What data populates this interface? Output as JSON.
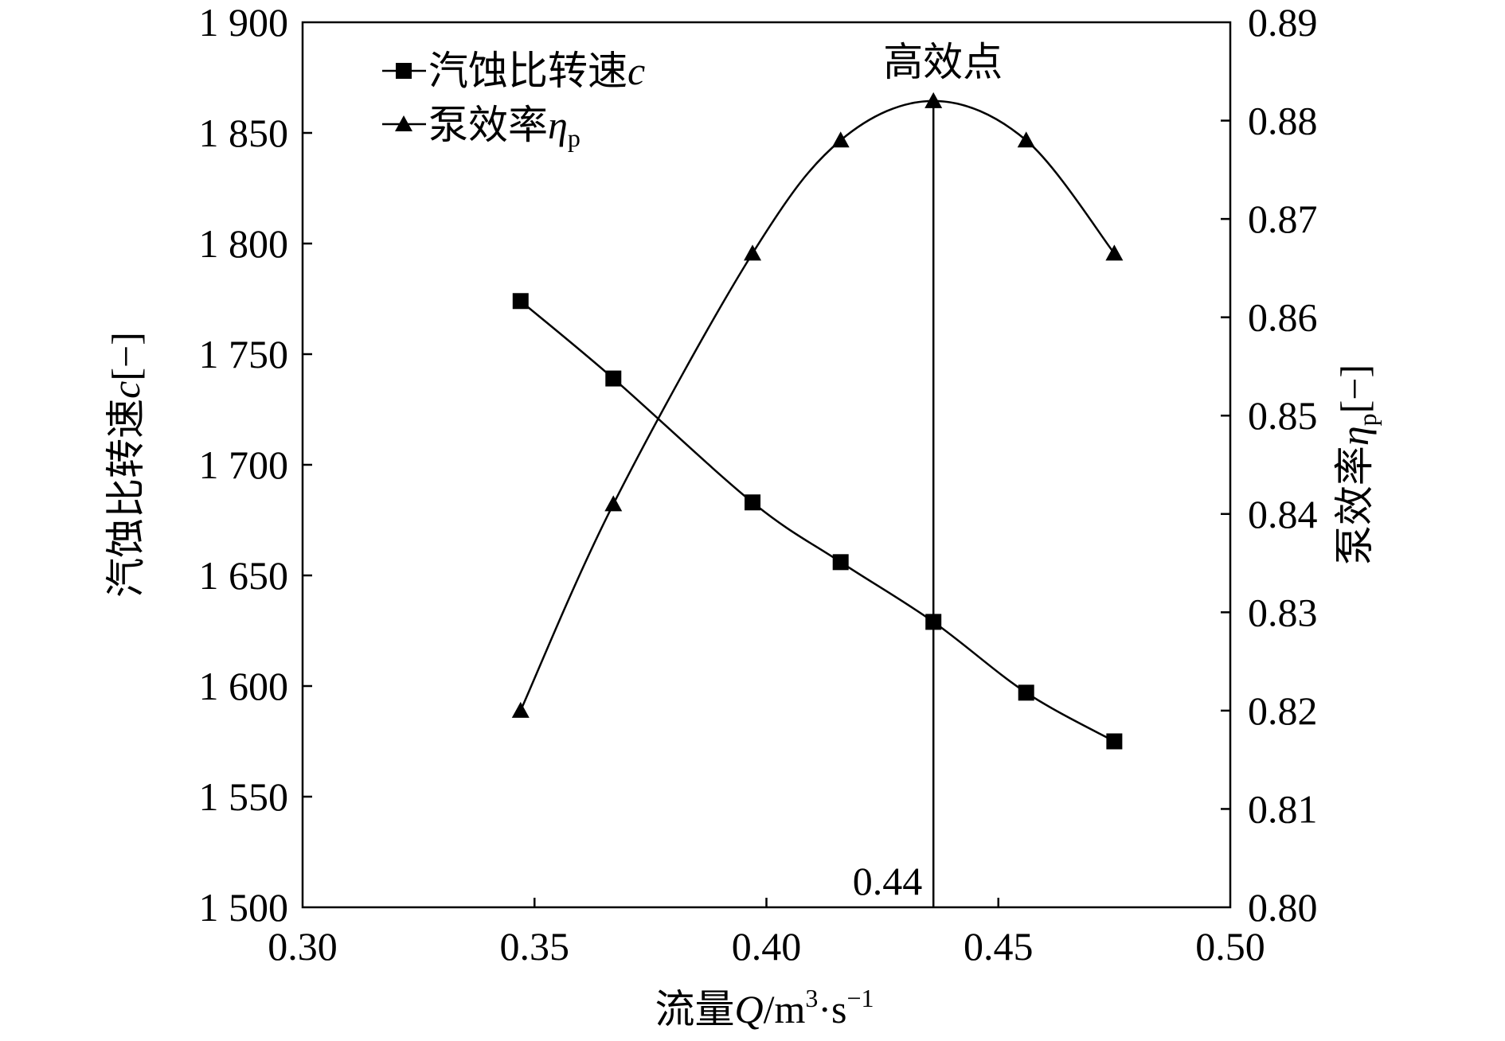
{
  "chart_data": {
    "type": "line",
    "xlabel": {
      "prefix": "流量",
      "var": "Q",
      "unit": "/m",
      "sup1": "3",
      "mid": "·s",
      "sup2": "−1"
    },
    "ylabel_left": {
      "text": "汽蚀比转速",
      "var": "c",
      "unit": "[−]"
    },
    "ylabel_right": {
      "text": "泵效率",
      "var": "η",
      "sub": "p",
      "unit": "[−]"
    },
    "xlim": [
      0.3,
      0.5
    ],
    "ylim_left": [
      1500,
      1900
    ],
    "ylim_right": [
      0.8,
      0.89
    ],
    "x_ticks": [
      "0.30",
      "0.35",
      "0.40",
      "0.45",
      "0.50"
    ],
    "y_left_ticks": [
      "1 500",
      "1 550",
      "1 600",
      "1 650",
      "1 700",
      "1 750",
      "1 800",
      "1 850",
      "1 900"
    ],
    "y_right_ticks": [
      "0.80",
      "0.81",
      "0.82",
      "0.83",
      "0.84",
      "0.85",
      "0.86",
      "0.87",
      "0.88",
      "0.89"
    ],
    "series": [
      {
        "name": "汽蚀比转速",
        "name_var": "c",
        "axis": "left",
        "marker": "square",
        "x": [
          0.347,
          0.367,
          0.397,
          0.416,
          0.436,
          0.456,
          0.475
        ],
        "y": [
          1774,
          1739,
          1683,
          1656,
          1629,
          1597,
          1575
        ]
      },
      {
        "name": "泵效率",
        "name_var": "η",
        "name_sub": "p",
        "axis": "right",
        "marker": "triangle",
        "x": [
          0.347,
          0.367,
          0.397,
          0.416,
          0.436,
          0.456,
          0.475
        ],
        "y": [
          0.82,
          0.841,
          0.8665,
          0.878,
          0.882,
          0.878,
          0.8665
        ]
      }
    ],
    "annotations": {
      "peak_label": "高效点",
      "peak_x": 0.436,
      "peak_value_label": "0.44"
    },
    "legend_position": "top-left",
    "grid": false
  }
}
